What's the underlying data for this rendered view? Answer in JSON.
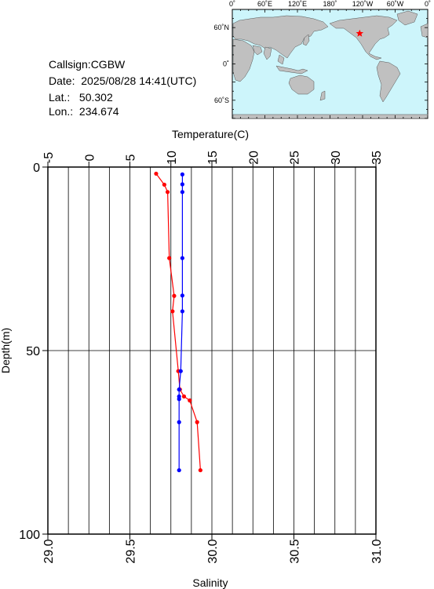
{
  "station": {
    "callsign": "Callsign:CGBW",
    "date": "Date:  2025/08/28 14:41(UTC)",
    "lat": "Lat.:   50.302",
    "lon": "Lon.:  234.674"
  },
  "map": {
    "top_labels": [
      "0˚",
      "60˚E",
      "120˚E",
      "180˚",
      "120˚W",
      "60˚W",
      "0˚"
    ],
    "left_labels": [
      "60˚N",
      "0˚",
      "60˚S"
    ],
    "station_lon": 234.674,
    "station_lat": 50.302,
    "colors": {
      "ocean": "#cdf5fb",
      "land": "#c0c0c0",
      "marker": "#ff0000"
    }
  },
  "chart_data": {
    "type": "line",
    "temperature_axis": {
      "label": "Temperature(C)",
      "range": [
        -5,
        35
      ],
      "ticks": [
        "-5",
        "0",
        "5",
        "10",
        "15",
        "20",
        "25",
        "30",
        "35"
      ]
    },
    "salinity_axis": {
      "label": "Salinity",
      "range": [
        29.0,
        31.0
      ],
      "ticks": [
        "29.0",
        "29.5",
        "30.0",
        "30.5",
        "31.0"
      ]
    },
    "depth_axis": {
      "label": "Depth(m)",
      "range": [
        0,
        100
      ],
      "ticks": [
        "0",
        "50",
        "100"
      ]
    },
    "series": [
      {
        "axis": "temperature",
        "color": "#ff0000",
        "points": [
          {
            "x": 8.2,
            "depth": 1.8
          },
          {
            "x": 9.2,
            "depth": 4.8
          },
          {
            "x": 9.6,
            "depth": 6.8
          },
          {
            "x": 9.8,
            "depth": 24.8
          },
          {
            "x": 10.4,
            "depth": 35.1
          },
          {
            "x": 10.2,
            "depth": 39.3
          },
          {
            "x": 10.9,
            "depth": 55.6
          },
          {
            "x": 11.1,
            "depth": 60.6
          },
          {
            "x": 11.6,
            "depth": 62.5
          },
          {
            "x": 12.3,
            "depth": 63.6
          },
          {
            "x": 13.2,
            "depth": 69.5
          },
          {
            "x": 13.6,
            "depth": 82.6
          }
        ]
      },
      {
        "axis": "salinity",
        "color": "#0000ff",
        "points": [
          {
            "x": 29.82,
            "depth": 2.0
          },
          {
            "x": 29.82,
            "depth": 4.7
          },
          {
            "x": 29.82,
            "depth": 6.8
          },
          {
            "x": 29.82,
            "depth": 24.8
          },
          {
            "x": 29.82,
            "depth": 35.0
          },
          {
            "x": 29.82,
            "depth": 39.3
          },
          {
            "x": 29.81,
            "depth": 55.6
          },
          {
            "x": 29.8,
            "depth": 60.6
          },
          {
            "x": 29.8,
            "depth": 62.5
          },
          {
            "x": 29.8,
            "depth": 63.2
          },
          {
            "x": 29.8,
            "depth": 69.5
          },
          {
            "x": 29.8,
            "depth": 82.6
          }
        ]
      }
    ],
    "grid": true
  }
}
